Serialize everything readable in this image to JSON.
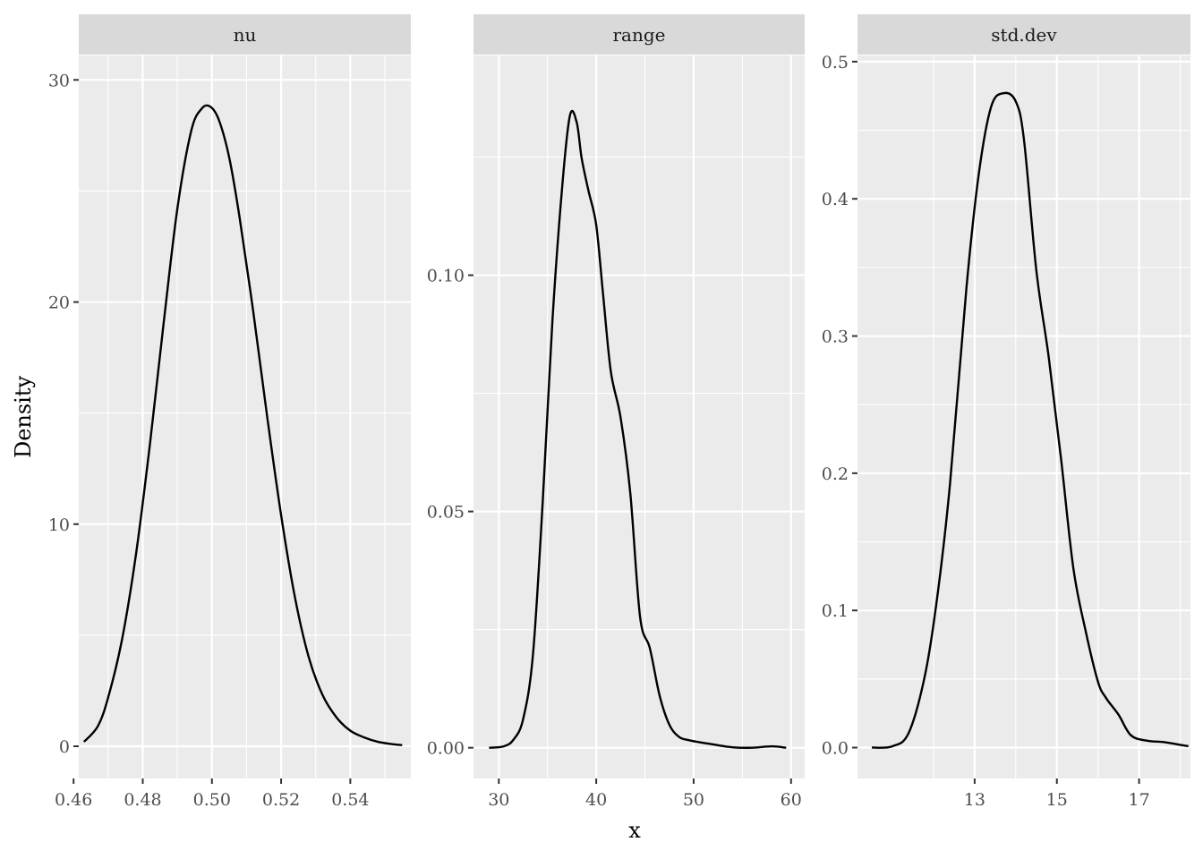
{
  "chart_data": {
    "type": "line",
    "facet_type": "density facets",
    "xlabel": "x",
    "ylabel": "Density",
    "grid": true,
    "facets": [
      {
        "title": "nu",
        "xlim": [
          0.4615,
          0.5575
        ],
        "ylim": [
          -1.45,
          31.1
        ],
        "xticks": [
          0.46,
          0.48,
          0.5,
          0.52,
          0.54
        ],
        "xtick_labels": [
          "0.46",
          "0.48",
          "0.50",
          "0.52",
          "0.54"
        ],
        "xminor": [
          0.47,
          0.49,
          0.51,
          0.53,
          0.55
        ],
        "yticks": [
          0,
          10,
          20,
          30
        ],
        "ytick_labels": [
          "0",
          "10",
          "20",
          "30"
        ],
        "yminor": [
          5,
          15,
          25
        ],
        "x": [
          0.463,
          0.467,
          0.47,
          0.474,
          0.478,
          0.482,
          0.486,
          0.49,
          0.494,
          0.497,
          0.4995,
          0.502,
          0.505,
          0.508,
          0.512,
          0.516,
          0.52,
          0.524,
          0.528,
          0.532,
          0.536,
          0.54,
          0.544,
          0.548,
          0.552,
          0.555
        ],
        "y": [
          0.2,
          0.9,
          2.2,
          4.8,
          8.6,
          13.5,
          19.0,
          24.2,
          27.7,
          28.7,
          28.8,
          28.2,
          26.5,
          23.8,
          19.5,
          14.8,
          10.4,
          6.7,
          4.0,
          2.3,
          1.3,
          0.7,
          0.4,
          0.2,
          0.1,
          0.05
        ]
      },
      {
        "title": "range",
        "xlim": [
          27.4,
          61.4
        ],
        "ylim": [
          -0.0065,
          0.1465
        ],
        "xticks": [
          30,
          40,
          50,
          60
        ],
        "xtick_labels": [
          "30",
          "40",
          "50",
          "60"
        ],
        "xminor": [
          35,
          45,
          55
        ],
        "yticks": [
          0.0,
          0.05,
          0.1
        ],
        "ytick_labels": [
          "0.00",
          "0.05",
          "0.10"
        ],
        "yminor": [
          0.025,
          0.075,
          0.125
        ],
        "x": [
          29.0,
          30.5,
          31.5,
          32.5,
          33.5,
          34.5,
          35.5,
          36.5,
          37.3,
          38.0,
          38.5,
          39.2,
          40.0,
          40.7,
          41.5,
          42.5,
          43.5,
          44.5,
          45.5,
          46.5,
          47.5,
          48.5,
          49.5,
          50.5,
          52.0,
          54.0,
          56.0,
          58.0,
          59.5
        ],
        "y": [
          0.0,
          0.0003,
          0.0017,
          0.0061,
          0.0196,
          0.0518,
          0.0903,
          0.1186,
          0.1338,
          0.1323,
          0.1248,
          0.1179,
          0.1106,
          0.096,
          0.0796,
          0.0699,
          0.0538,
          0.0277,
          0.0211,
          0.0111,
          0.0049,
          0.0023,
          0.0016,
          0.0012,
          0.0007,
          0.0001,
          0.0,
          0.0003,
          0.0
        ]
      },
      {
        "title": "std.dev",
        "xlim": [
          10.15,
          18.25
        ],
        "ylim": [
          -0.0225,
          0.5045
        ],
        "xticks": [
          13,
          15,
          17
        ],
        "xtick_labels": [
          "13",
          "15",
          "17"
        ],
        "xminor": [
          12,
          14,
          16,
          18
        ],
        "yticks": [
          0.0,
          0.1,
          0.2,
          0.3,
          0.4,
          0.5
        ],
        "ytick_labels": [
          "0.0",
          "0.1",
          "0.2",
          "0.3",
          "0.4",
          "0.5"
        ],
        "yminor": [
          0.05,
          0.15,
          0.25,
          0.35,
          0.45
        ],
        "x": [
          10.5,
          11.0,
          11.4,
          11.8,
          12.1,
          12.4,
          12.8,
          13.1,
          13.4,
          13.7,
          14.0,
          14.2,
          14.5,
          14.8,
          15.1,
          15.4,
          15.7,
          16.0,
          16.2,
          16.5,
          16.8,
          17.2,
          17.6,
          18.0,
          18.2
        ],
        "y": [
          0.0,
          0.001,
          0.011,
          0.054,
          0.112,
          0.192,
          0.335,
          0.418,
          0.467,
          0.477,
          0.471,
          0.443,
          0.348,
          0.285,
          0.211,
          0.131,
          0.085,
          0.048,
          0.036,
          0.024,
          0.009,
          0.005,
          0.004,
          0.002,
          0.001
        ]
      }
    ]
  }
}
